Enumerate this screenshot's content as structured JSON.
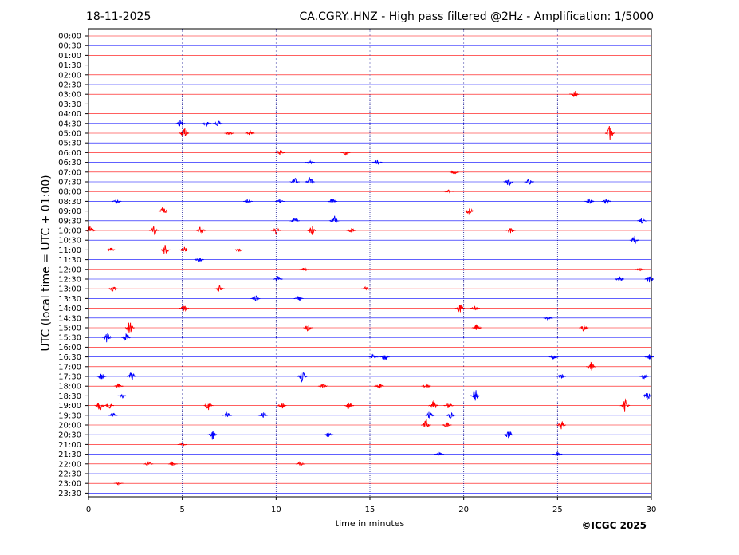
{
  "header": {
    "date": "18-11-2025",
    "title": "CA.CGRY..HNZ - High pass filtered @2Hz - Amplification: 1/5000"
  },
  "footer": {
    "copyright": "©ICGC 2025"
  },
  "chart_data": {
    "type": "line",
    "xlabel": "time in minutes",
    "ylabel": "UTC (local time = UTC + 01:00)",
    "xlim": [
      0,
      30
    ],
    "x_ticks": [
      "0",
      "5",
      "10",
      "15",
      "20",
      "25",
      "30"
    ],
    "x_tick_values": [
      0,
      5,
      10,
      15,
      20,
      25,
      30
    ],
    "grid": "vertical dotted lines at 5-minute intervals",
    "row_labels": [
      "00:00",
      "00:30",
      "01:00",
      "01:30",
      "02:00",
      "02:30",
      "03:00",
      "03:30",
      "04:00",
      "04:30",
      "05:00",
      "05:30",
      "06:00",
      "06:30",
      "07:00",
      "07:30",
      "08:00",
      "08:30",
      "09:00",
      "09:30",
      "10:00",
      "10:30",
      "11:00",
      "11:30",
      "12:00",
      "12:30",
      "13:00",
      "13:30",
      "14:00",
      "14:30",
      "15:00",
      "15:30",
      "16:00",
      "16:30",
      "17:00",
      "17:30",
      "18:00",
      "18:30",
      "19:00",
      "19:30",
      "20:00",
      "20:30",
      "21:00",
      "21:30",
      "22:00",
      "22:30",
      "23:00",
      "23:30"
    ],
    "trace_colors": [
      "#ff0000",
      "#0000ff"
    ],
    "activity": [
      {
        "row": "03:00",
        "minute": 25.9,
        "amp": 0.8
      },
      {
        "row": "04:30",
        "minute": 4.9,
        "amp": 0.7
      },
      {
        "row": "04:30",
        "minute": 6.3,
        "amp": 0.6
      },
      {
        "row": "04:30",
        "minute": 6.9,
        "amp": 0.5
      },
      {
        "row": "05:00",
        "minute": 5.1,
        "amp": 1.1
      },
      {
        "row": "05:00",
        "minute": 7.5,
        "amp": 0.4
      },
      {
        "row": "05:00",
        "minute": 8.6,
        "amp": 0.6
      },
      {
        "row": "05:00",
        "minute": 27.8,
        "amp": 1.4
      },
      {
        "row": "06:00",
        "minute": 10.2,
        "amp": 0.5
      },
      {
        "row": "06:00",
        "minute": 13.7,
        "amp": 0.4
      },
      {
        "row": "06:30",
        "minute": 11.8,
        "amp": 0.4
      },
      {
        "row": "06:30",
        "minute": 15.4,
        "amp": 0.5
      },
      {
        "row": "07:00",
        "minute": 19.5,
        "amp": 0.4
      },
      {
        "row": "07:30",
        "minute": 11.0,
        "amp": 0.7
      },
      {
        "row": "07:30",
        "minute": 11.8,
        "amp": 0.9
      },
      {
        "row": "07:30",
        "minute": 22.4,
        "amp": 0.9
      },
      {
        "row": "07:30",
        "minute": 23.5,
        "amp": 0.6
      },
      {
        "row": "08:00",
        "minute": 19.2,
        "amp": 0.4
      },
      {
        "row": "08:30",
        "minute": 1.5,
        "amp": 0.4
      },
      {
        "row": "08:30",
        "minute": 8.5,
        "amp": 0.4
      },
      {
        "row": "08:30",
        "minute": 10.2,
        "amp": 0.4
      },
      {
        "row": "08:30",
        "minute": 13.0,
        "amp": 0.5
      },
      {
        "row": "08:30",
        "minute": 26.7,
        "amp": 0.6
      },
      {
        "row": "08:30",
        "minute": 27.6,
        "amp": 0.5
      },
      {
        "row": "09:00",
        "minute": 4.0,
        "amp": 0.8
      },
      {
        "row": "09:00",
        "minute": 20.3,
        "amp": 0.7
      },
      {
        "row": "09:30",
        "minute": 11.0,
        "amp": 0.6
      },
      {
        "row": "09:30",
        "minute": 13.1,
        "amp": 0.9
      },
      {
        "row": "09:30",
        "minute": 29.5,
        "amp": 0.6
      },
      {
        "row": "10:00",
        "minute": 0.1,
        "amp": 0.8
      },
      {
        "row": "10:00",
        "minute": 3.5,
        "amp": 0.7
      },
      {
        "row": "10:00",
        "minute": 6.0,
        "amp": 0.8
      },
      {
        "row": "10:00",
        "minute": 10.0,
        "amp": 0.7
      },
      {
        "row": "10:00",
        "minute": 11.9,
        "amp": 0.9
      },
      {
        "row": "10:00",
        "minute": 14.0,
        "amp": 0.6
      },
      {
        "row": "10:00",
        "minute": 22.5,
        "amp": 0.5
      },
      {
        "row": "10:30",
        "minute": 29.1,
        "amp": 0.8
      },
      {
        "row": "11:00",
        "minute": 1.2,
        "amp": 0.4
      },
      {
        "row": "11:00",
        "minute": 4.1,
        "amp": 1.0
      },
      {
        "row": "11:00",
        "minute": 5.1,
        "amp": 0.7
      },
      {
        "row": "11:00",
        "minute": 8.0,
        "amp": 0.3
      },
      {
        "row": "11:30",
        "minute": 5.9,
        "amp": 0.5
      },
      {
        "row": "12:00",
        "minute": 11.5,
        "amp": 0.3
      },
      {
        "row": "12:00",
        "minute": 29.4,
        "amp": 0.3
      },
      {
        "row": "12:30",
        "minute": 10.1,
        "amp": 0.5
      },
      {
        "row": "12:30",
        "minute": 28.3,
        "amp": 0.5
      },
      {
        "row": "12:30",
        "minute": 29.9,
        "amp": 1.0
      },
      {
        "row": "13:00",
        "minute": 1.3,
        "amp": 0.5
      },
      {
        "row": "13:00",
        "minute": 7.0,
        "amp": 0.6
      },
      {
        "row": "13:00",
        "minute": 14.8,
        "amp": 0.4
      },
      {
        "row": "13:30",
        "minute": 8.9,
        "amp": 0.6
      },
      {
        "row": "13:30",
        "minute": 11.2,
        "amp": 0.5
      },
      {
        "row": "14:00",
        "minute": 5.1,
        "amp": 0.7
      },
      {
        "row": "14:00",
        "minute": 19.8,
        "amp": 0.8
      },
      {
        "row": "14:00",
        "minute": 20.6,
        "amp": 0.5
      },
      {
        "row": "14:30",
        "minute": 24.5,
        "amp": 0.4
      },
      {
        "row": "15:00",
        "minute": 2.2,
        "amp": 1.4
      },
      {
        "row": "15:00",
        "minute": 11.7,
        "amp": 0.6
      },
      {
        "row": "15:00",
        "minute": 20.7,
        "amp": 0.6
      },
      {
        "row": "15:00",
        "minute": 26.4,
        "amp": 0.6
      },
      {
        "row": "15:30",
        "minute": 1.0,
        "amp": 1.0
      },
      {
        "row": "15:30",
        "minute": 2.0,
        "amp": 0.7
      },
      {
        "row": "16:30",
        "minute": 15.2,
        "amp": 0.5
      },
      {
        "row": "16:30",
        "minute": 15.8,
        "amp": 0.6
      },
      {
        "row": "16:30",
        "minute": 24.8,
        "amp": 0.5
      },
      {
        "row": "16:30",
        "minute": 29.9,
        "amp": 0.5
      },
      {
        "row": "17:00",
        "minute": 26.8,
        "amp": 0.9
      },
      {
        "row": "17:30",
        "minute": 0.7,
        "amp": 0.6
      },
      {
        "row": "17:30",
        "minute": 2.3,
        "amp": 0.8
      },
      {
        "row": "17:30",
        "minute": 11.4,
        "amp": 1.1
      },
      {
        "row": "17:30",
        "minute": 25.2,
        "amp": 0.5
      },
      {
        "row": "17:30",
        "minute": 29.6,
        "amp": 0.5
      },
      {
        "row": "18:00",
        "minute": 1.6,
        "amp": 0.5
      },
      {
        "row": "18:00",
        "minute": 12.5,
        "amp": 0.5
      },
      {
        "row": "18:00",
        "minute": 15.5,
        "amp": 0.6
      },
      {
        "row": "18:00",
        "minute": 18.0,
        "amp": 0.5
      },
      {
        "row": "18:30",
        "minute": 1.8,
        "amp": 0.4
      },
      {
        "row": "18:30",
        "minute": 20.6,
        "amp": 1.3
      },
      {
        "row": "18:30",
        "minute": 29.8,
        "amp": 0.8
      },
      {
        "row": "19:00",
        "minute": 0.6,
        "amp": 1.1
      },
      {
        "row": "19:00",
        "minute": 1.1,
        "amp": 0.6
      },
      {
        "row": "19:00",
        "minute": 6.4,
        "amp": 0.8
      },
      {
        "row": "19:00",
        "minute": 10.3,
        "amp": 0.6
      },
      {
        "row": "19:00",
        "minute": 13.9,
        "amp": 0.6
      },
      {
        "row": "19:00",
        "minute": 18.4,
        "amp": 0.9
      },
      {
        "row": "19:00",
        "minute": 19.2,
        "amp": 0.6
      },
      {
        "row": "19:00",
        "minute": 28.6,
        "amp": 1.2
      },
      {
        "row": "19:30",
        "minute": 1.3,
        "amp": 0.4
      },
      {
        "row": "19:30",
        "minute": 7.4,
        "amp": 0.5
      },
      {
        "row": "19:30",
        "minute": 9.3,
        "amp": 0.7
      },
      {
        "row": "19:30",
        "minute": 18.2,
        "amp": 0.7
      },
      {
        "row": "19:30",
        "minute": 19.3,
        "amp": 0.5
      },
      {
        "row": "20:00",
        "minute": 18.0,
        "amp": 0.9
      },
      {
        "row": "20:00",
        "minute": 19.1,
        "amp": 0.5
      },
      {
        "row": "20:00",
        "minute": 25.2,
        "amp": 0.8
      },
      {
        "row": "20:30",
        "minute": 6.6,
        "amp": 1.0
      },
      {
        "row": "20:30",
        "minute": 12.8,
        "amp": 0.4
      },
      {
        "row": "20:30",
        "minute": 22.4,
        "amp": 1.0
      },
      {
        "row": "21:00",
        "minute": 5.0,
        "amp": 0.3
      },
      {
        "row": "21:30",
        "minute": 18.7,
        "amp": 0.3
      },
      {
        "row": "21:30",
        "minute": 25.0,
        "amp": 0.4
      },
      {
        "row": "22:00",
        "minute": 3.2,
        "amp": 0.4
      },
      {
        "row": "22:00",
        "minute": 4.5,
        "amp": 0.4
      },
      {
        "row": "22:00",
        "minute": 11.3,
        "amp": 0.4
      },
      {
        "row": "23:00",
        "minute": 1.6,
        "amp": 0.2
      }
    ]
  }
}
